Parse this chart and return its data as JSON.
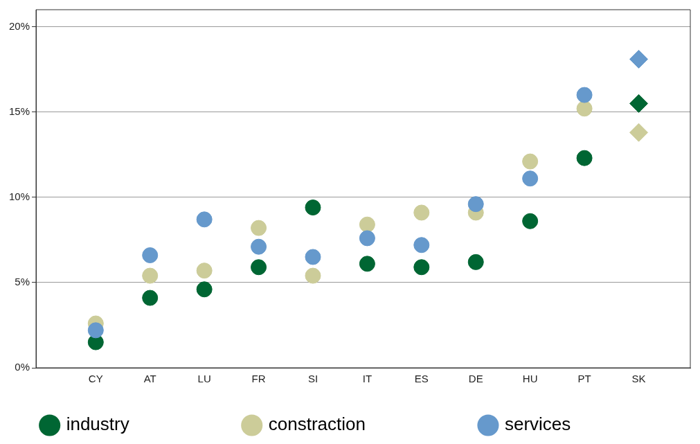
{
  "chart_data": {
    "type": "scatter",
    "categories": [
      "CY",
      "AT",
      "LU",
      "FR",
      "SI",
      "IT",
      "ES",
      "DE",
      "HU",
      "PT",
      "SK"
    ],
    "ylim": [
      0,
      21
    ],
    "yticks": [
      {
        "value": 0,
        "label": "0%"
      },
      {
        "value": 5,
        "label": "5%"
      },
      {
        "value": 10,
        "label": "10%"
      },
      {
        "value": 15,
        "label": "15%"
      },
      {
        "value": 20,
        "label": "20%"
      }
    ],
    "grid": "y",
    "legend": "bottom",
    "marker": "circle",
    "series": [
      {
        "name": "industry",
        "color": "#006633",
        "values": [
          1.5,
          4.1,
          4.6,
          5.9,
          9.4,
          6.1,
          5.9,
          6.2,
          8.6,
          12.3,
          null
        ]
      },
      {
        "name": "constraction",
        "color": "#cccc99",
        "values": [
          2.6,
          5.4,
          5.7,
          8.2,
          5.4,
          8.4,
          9.1,
          9.1,
          12.1,
          15.2,
          null
        ]
      },
      {
        "name": "services",
        "color": "#6699cc",
        "values": [
          2.2,
          6.6,
          8.7,
          7.1,
          6.5,
          7.6,
          7.2,
          9.6,
          11.1,
          16.0,
          null
        ]
      },
      {
        "color": "#006633",
        "marker": "diamond",
        "x": [
          "SK"
        ],
        "values": [
          15.5
        ]
      },
      {
        "color": "#cccc99",
        "marker": "diamond",
        "x": [
          "SK"
        ],
        "values": [
          13.8
        ]
      },
      {
        "color": "#6699cc",
        "marker": "diamond",
        "x": [
          "SK"
        ],
        "values": [
          18.1
        ]
      }
    ]
  }
}
